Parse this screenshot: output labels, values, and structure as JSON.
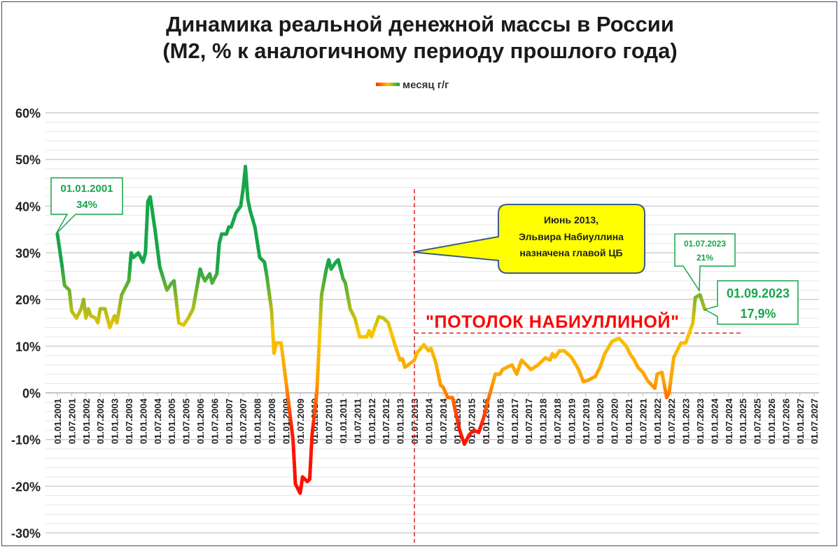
{
  "chart_data": {
    "type": "line",
    "title": "Динамика реальной денежной массы в России",
    "subtitle": "(М2, % к аналогичному периоду прошлого года)",
    "legend": {
      "label": "месяц г/г",
      "placement": "top"
    },
    "grid": true,
    "ylim": [
      -30,
      60
    ],
    "y_ticks": [
      "-30%",
      "-20%",
      "-10%",
      "0%",
      "10%",
      "20%",
      "30%",
      "40%",
      "50%",
      "60%"
    ],
    "x_ticks": [
      "01.01.2001",
      "01.07.2001",
      "01.01.2002",
      "01.07.2002",
      "01.01.2003",
      "01.07.2003",
      "01.01.2004",
      "01.07.2004",
      "01.01.2005",
      "01.07.2005",
      "01.01.2006",
      "01.07.2006",
      "01.01.2007",
      "01.07.2007",
      "01.01.2008",
      "01.07.2008",
      "01.01.2009",
      "01.07.2009",
      "01.01.2010",
      "01.07.2010",
      "01.01.2011",
      "01.07.2011",
      "01.01.2012",
      "01.07.2012",
      "01.01.2013",
      "01.07.2013",
      "01.01.2014",
      "01.07.2014",
      "01.01.2015",
      "01.07.2015",
      "01.01.2016",
      "01.07.2016",
      "01.01.2017",
      "01.07.2017",
      "01.01.2018",
      "01.07.2018",
      "01.01.2019",
      "01.07.2019",
      "01.01.2020",
      "01.07.2020",
      "01.01.2021",
      "01.07.2021",
      "01.01.2022",
      "01.07.2022",
      "01.01.2023",
      "01.07.2023",
      "01.01.2024",
      "01.07.2024",
      "01.01.2025",
      "01.07.2025",
      "01.01.2026",
      "01.07.2026",
      "01.01.2027",
      "01.07.2027"
    ],
    "colors": {
      "high": "#16a64a",
      "mid": "#f7c600",
      "low": "#ff8c00",
      "negative": "#ff0000"
    },
    "series": [
      {
        "name": "месяц г/г",
        "points": [
          [
            "2001-01",
            34
          ],
          [
            "2001-03",
            27
          ],
          [
            "2001-04",
            23
          ],
          [
            "2001-06",
            22
          ],
          [
            "2001-07",
            17.5
          ],
          [
            "2001-09",
            16
          ],
          [
            "2001-11",
            18
          ],
          [
            "2001-12",
            20
          ],
          [
            "2002-01",
            16
          ],
          [
            "2002-02",
            18
          ],
          [
            "2002-03",
            16.5
          ],
          [
            "2002-05",
            16
          ],
          [
            "2002-06",
            15
          ],
          [
            "2002-07",
            18
          ],
          [
            "2002-09",
            18
          ],
          [
            "2002-11",
            14
          ],
          [
            "2003-01",
            16.5
          ],
          [
            "2003-02",
            15
          ],
          [
            "2003-04",
            21
          ],
          [
            "2003-07",
            24
          ],
          [
            "2003-08",
            30
          ],
          [
            "2003-09",
            29
          ],
          [
            "2003-11",
            30
          ],
          [
            "2004-01",
            28
          ],
          [
            "2004-02",
            30
          ],
          [
            "2004-03",
            41
          ],
          [
            "2004-04",
            42
          ],
          [
            "2004-06",
            35
          ],
          [
            "2004-08",
            27
          ],
          [
            "2004-11",
            22
          ],
          [
            "2005-01",
            23.5
          ],
          [
            "2005-02",
            24
          ],
          [
            "2005-04",
            15
          ],
          [
            "2005-06",
            14.5
          ],
          [
            "2005-08",
            16
          ],
          [
            "2005-10",
            18
          ],
          [
            "2006-01",
            26.5
          ],
          [
            "2006-02",
            25
          ],
          [
            "2006-03",
            24
          ],
          [
            "2006-05",
            25.5
          ],
          [
            "2006-06",
            23.5
          ],
          [
            "2006-08",
            25.5
          ],
          [
            "2006-09",
            32
          ],
          [
            "2006-10",
            34
          ],
          [
            "2006-12",
            34
          ],
          [
            "2007-01",
            35.5
          ],
          [
            "2007-02",
            35.5
          ],
          [
            "2007-04",
            38.5
          ],
          [
            "2007-06",
            40
          ],
          [
            "2007-07",
            43.5
          ],
          [
            "2007-08",
            48.5
          ],
          [
            "2007-09",
            41.5
          ],
          [
            "2007-10",
            39
          ],
          [
            "2007-12",
            35.5
          ],
          [
            "2008-02",
            29
          ],
          [
            "2008-04",
            28
          ],
          [
            "2008-05",
            25
          ],
          [
            "2008-07",
            17.5
          ],
          [
            "2008-08",
            8.5
          ],
          [
            "2008-09",
            10.7
          ],
          [
            "2008-11",
            10.7
          ],
          [
            "2009-02",
            -1.5
          ],
          [
            "2009-04",
            -10
          ],
          [
            "2009-05",
            -19.5
          ],
          [
            "2009-07",
            -21.5
          ],
          [
            "2009-08",
            -18
          ],
          [
            "2009-10",
            -19
          ],
          [
            "2009-11",
            -18.5
          ],
          [
            "2009-12",
            -9
          ],
          [
            "2010-02",
            0
          ],
          [
            "2010-03",
            10.5
          ],
          [
            "2010-04",
            21
          ],
          [
            "2010-06",
            26.5
          ],
          [
            "2010-07",
            28.5
          ],
          [
            "2010-08",
            26.5
          ],
          [
            "2010-10",
            28
          ],
          [
            "2010-11",
            28.5
          ],
          [
            "2011-01",
            24.5
          ],
          [
            "2011-02",
            23.5
          ],
          [
            "2011-04",
            18
          ],
          [
            "2011-06",
            16
          ],
          [
            "2011-08",
            12
          ],
          [
            "2011-10",
            12
          ],
          [
            "2011-11",
            12
          ],
          [
            "2011-12",
            13.3
          ],
          [
            "2012-01",
            12
          ],
          [
            "2012-02",
            13.5
          ],
          [
            "2012-04",
            16.3
          ],
          [
            "2012-06",
            16
          ],
          [
            "2012-08",
            15
          ],
          [
            "2012-11",
            10
          ],
          [
            "2013-01",
            7
          ],
          [
            "2013-02",
            7.3
          ],
          [
            "2013-03",
            5.5
          ],
          [
            "2013-06",
            6.6
          ],
          [
            "2013-07",
            7
          ],
          [
            "2013-08",
            8.5
          ],
          [
            "2013-11",
            10.3
          ],
          [
            "2014-01",
            9
          ],
          [
            "2014-02",
            9.5
          ],
          [
            "2014-04",
            6.5
          ],
          [
            "2014-06",
            1.6
          ],
          [
            "2014-07",
            1.3
          ],
          [
            "2014-09",
            -1
          ],
          [
            "2014-11",
            -1
          ],
          [
            "2015-02",
            -8
          ],
          [
            "2015-04",
            -11
          ],
          [
            "2015-06",
            -9
          ],
          [
            "2015-08",
            -8
          ],
          [
            "2015-10",
            -8.5
          ],
          [
            "2015-12",
            -5.5
          ],
          [
            "2016-02",
            -1.5
          ],
          [
            "2016-05",
            4
          ],
          [
            "2016-07",
            4
          ],
          [
            "2016-08",
            5
          ],
          [
            "2016-10",
            5.5
          ],
          [
            "2016-12",
            6
          ],
          [
            "2017-02",
            4
          ],
          [
            "2017-04",
            7
          ],
          [
            "2017-06",
            6
          ],
          [
            "2017-08",
            5
          ],
          [
            "2017-11",
            6
          ],
          [
            "2018-01",
            7
          ],
          [
            "2018-02",
            7.5
          ],
          [
            "2018-04",
            7
          ],
          [
            "2018-05",
            8.4
          ],
          [
            "2018-06",
            7.6
          ],
          [
            "2018-08",
            9
          ],
          [
            "2018-10",
            9
          ],
          [
            "2019-01",
            7.6
          ],
          [
            "2019-04",
            5
          ],
          [
            "2019-06",
            2.4
          ],
          [
            "2019-08",
            2.7
          ],
          [
            "2019-11",
            3.5
          ],
          [
            "2020-01",
            5.5
          ],
          [
            "2020-03",
            8.4
          ],
          [
            "2020-06",
            11
          ],
          [
            "2020-09",
            11.7
          ],
          [
            "2020-12",
            10
          ],
          [
            "2021-02",
            8
          ],
          [
            "2021-03",
            7.4
          ],
          [
            "2021-05",
            5.4
          ],
          [
            "2021-07",
            4.4
          ],
          [
            "2021-09",
            2.6
          ],
          [
            "2021-12",
            1
          ],
          [
            "2022-01",
            4
          ],
          [
            "2022-03",
            4.4
          ],
          [
            "2022-05",
            -1
          ],
          [
            "2022-06",
            0
          ],
          [
            "2022-08",
            7.6
          ],
          [
            "2022-11",
            10.7
          ],
          [
            "2023-01",
            10.7
          ],
          [
            "2023-04",
            15
          ],
          [
            "2023-05",
            20.4
          ],
          [
            "2023-07",
            21
          ],
          [
            "2023-09",
            17.9
          ]
        ]
      }
    ],
    "annotations": {
      "start": {
        "date": "01.01.2001",
        "value": "34%"
      },
      "peak_2023": {
        "date": "01.07.2023",
        "value": "21%"
      },
      "last": {
        "date": "01.09.2023",
        "value": "17,9%"
      },
      "callout": [
        "Июнь 2013,",
        "Эльвира  Набиуллина",
        "назначена главой ЦБ"
      ],
      "ceiling_label": "\"ПОТОЛОК НАБИУЛЛИНОЙ\"",
      "ceiling_value": 12.8,
      "vertical_marker": "2013-07"
    }
  }
}
